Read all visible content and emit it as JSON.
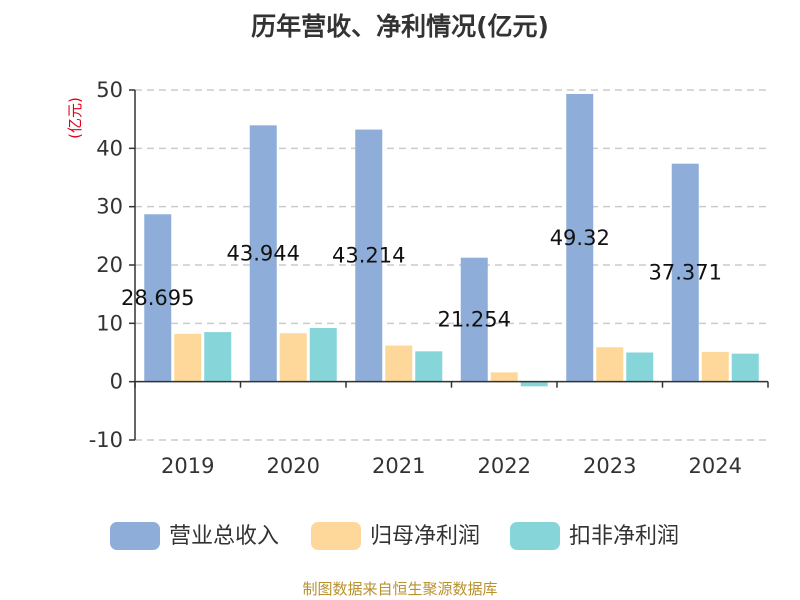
{
  "chart_data": {
    "type": "bar",
    "title": "历年营收、净利情况(亿元)",
    "unit_label": "(亿元)",
    "categories": [
      "2019",
      "2020",
      "2021",
      "2022",
      "2023",
      "2024"
    ],
    "series": [
      {
        "name": "营业总收入",
        "color": "#8eadd9",
        "values": [
          28.695,
          43.944,
          43.214,
          21.254,
          49.32,
          37.371
        ],
        "data_labels": [
          "28.695",
          "43.944",
          "43.214",
          "21.254",
          "49.32",
          "37.371"
        ]
      },
      {
        "name": "归母净利润",
        "color": "#fed89a",
        "values": [
          8.2,
          8.3,
          6.2,
          1.6,
          5.9,
          5.1
        ]
      },
      {
        "name": "扣非净利润",
        "color": "#86d5d8",
        "values": [
          8.5,
          9.2,
          5.2,
          -0.8,
          5.0,
          4.8
        ]
      }
    ],
    "ylim": [
      -10,
      50
    ],
    "yticks": [
      "-10",
      "0",
      "10",
      "20",
      "30",
      "40",
      "50"
    ],
    "grid": true,
    "legend_position": "bottom"
  },
  "footer": "制图数据来自恒生聚源数据库"
}
